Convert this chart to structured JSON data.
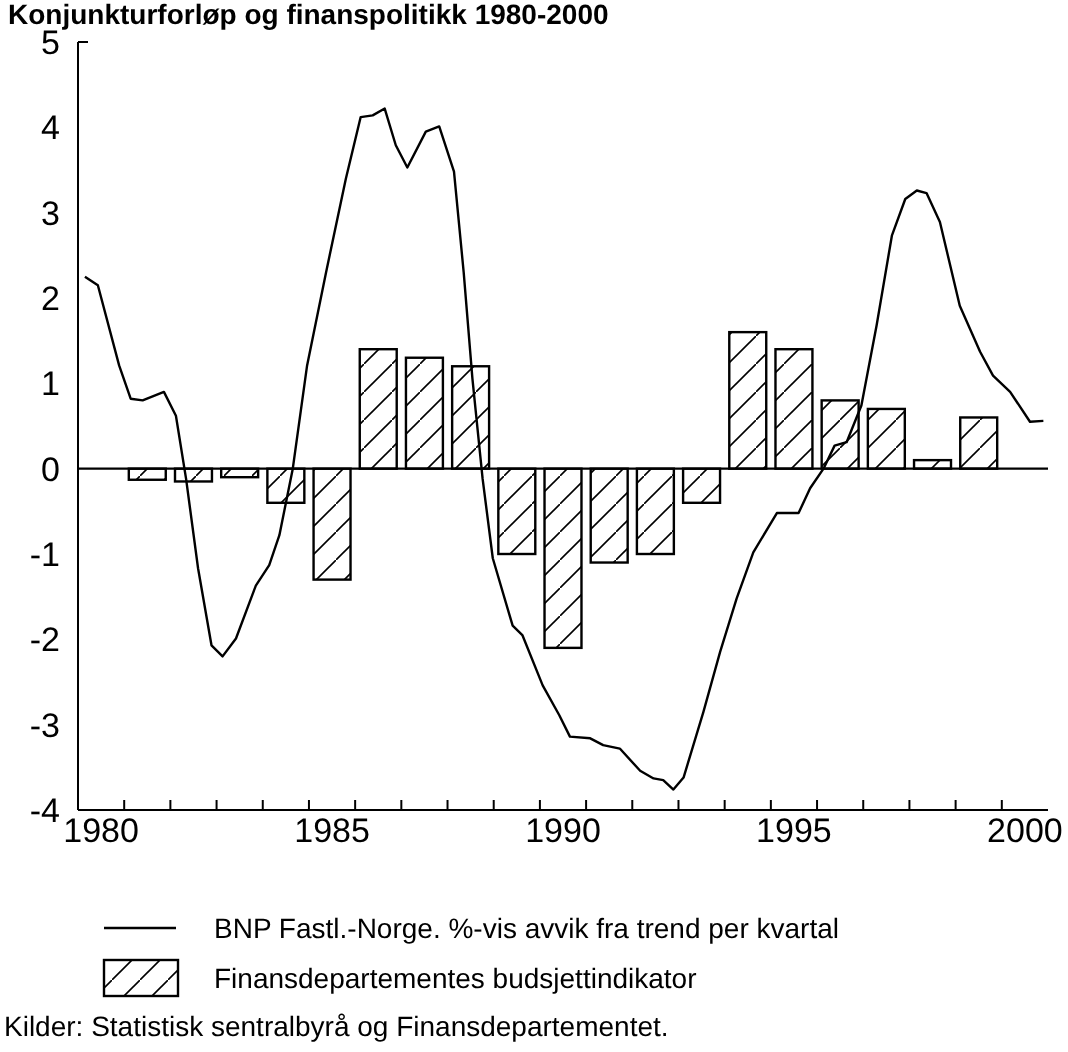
{
  "chart_data": {
    "type": "bar",
    "title": "Konjunkturforløp og finanspolitikk 1980-2000",
    "annotations": [
      "Kilder: Statistisk sentralbyrå og Finansdepartementet."
    ],
    "xlim": [
      1979.5,
      2000.5
    ],
    "xticks": [
      {
        "value": 1980,
        "label": "1980"
      },
      {
        "value": 1985,
        "label": "1985"
      },
      {
        "value": 1990,
        "label": "1990"
      },
      {
        "value": 1995,
        "label": "1995"
      },
      {
        "value": 2000,
        "label": "2000"
      },
      {
        "value": 1980.5,
        "label": null
      },
      {
        "value": 1981.5,
        "label": null
      },
      {
        "value": 1982.5,
        "label": null
      },
      {
        "value": 1983.5,
        "label": null
      },
      {
        "value": 1984.5,
        "label": null
      },
      {
        "value": 1985.5,
        "label": null
      },
      {
        "value": 1986.5,
        "label": null
      },
      {
        "value": 1987.5,
        "label": null
      },
      {
        "value": 1988.5,
        "label": null
      },
      {
        "value": 1989.5,
        "label": null
      },
      {
        "value": 1990.5,
        "label": null
      },
      {
        "value": 1991.5,
        "label": null
      },
      {
        "value": 1992.5,
        "label": null
      },
      {
        "value": 1993.5,
        "label": null
      },
      {
        "value": 1994.5,
        "label": null
      },
      {
        "value": 1995.5,
        "label": null
      },
      {
        "value": 1996.5,
        "label": null
      },
      {
        "value": 1997.5,
        "label": null
      },
      {
        "value": 1998.5,
        "label": null
      },
      {
        "value": 1999.5,
        "label": null
      }
    ],
    "ylim": [
      -4,
      5
    ],
    "yticks": [
      -4,
      -3,
      -2,
      -1,
      0,
      1,
      2,
      3,
      4,
      5
    ],
    "ref_lines": [
      {
        "axis": "y",
        "value": 0
      }
    ],
    "legend": "bottom",
    "series": [
      {
        "type": "line",
        "name": "BNP Fastl.-Norge. %-vis avvik fra trend per kvartal",
        "color": "#000000",
        "x": [
          1979.65,
          1979.93,
          1980.39,
          1980.64,
          1980.9,
          1981.36,
          1981.62,
          1981.84,
          1982.1,
          1982.39,
          1982.63,
          1982.92,
          1983.35,
          1983.64,
          1983.86,
          1984.15,
          1984.46,
          1984.87,
          1985.3,
          1985.62,
          1985.88,
          1986.14,
          1986.38,
          1986.63,
          1987.03,
          1987.32,
          1987.64,
          1987.85,
          1988.04,
          1988.26,
          1988.48,
          1988.91,
          1989.12,
          1989.56,
          1989.92,
          1990.15,
          1990.59,
          1990.87,
          1991.23,
          1991.67,
          1991.96,
          1992.17,
          1992.39,
          1992.61,
          1993.04,
          1993.4,
          1993.76,
          1994.12,
          1994.63,
          1995.1,
          1995.35,
          1995.64,
          1995.88,
          1996.14,
          1996.46,
          1996.79,
          1997.12,
          1997.41,
          1997.66,
          1997.87,
          1998.16,
          1998.59,
          1999.03,
          1999.31,
          1999.68,
          2000.11,
          2000.4
        ],
        "values": [
          2.25,
          2.15,
          1.21,
          0.82,
          0.8,
          0.9,
          0.62,
          -0.12,
          -1.17,
          -2.07,
          -2.2,
          -1.99,
          -1.37,
          -1.13,
          -0.78,
          0,
          1.21,
          2.3,
          3.4,
          4.12,
          4.14,
          4.22,
          3.79,
          3.53,
          3.95,
          4.01,
          3.48,
          2.3,
          1.05,
          -0.12,
          -1.05,
          -1.84,
          -1.95,
          -2.54,
          -2.89,
          -3.14,
          -3.16,
          -3.24,
          -3.28,
          -3.54,
          -3.63,
          -3.65,
          -3.76,
          -3.62,
          -2.85,
          -2.15,
          -1.52,
          -0.98,
          -0.52,
          -0.52,
          -0.23,
          0,
          0.27,
          0.31,
          0.74,
          1.68,
          2.73,
          3.16,
          3.26,
          3.23,
          2.89,
          1.91,
          1.37,
          1.09,
          0.9,
          0.55,
          0.56
        ]
      },
      {
        "name": "Finansdepartementes budsjettindikator",
        "color": "#000000",
        "x": [
          1981,
          1982,
          1983,
          1984,
          1985,
          1986,
          1987,
          1988,
          1989,
          1990,
          1991,
          1992,
          1993,
          1994,
          1995,
          1996,
          1997,
          1998,
          1999
        ],
        "values": [
          -0.13,
          -0.15,
          -0.1,
          -0.4,
          -1.3,
          1.4,
          1.3,
          1.2,
          -1.0,
          -2.1,
          -1.1,
          -1.0,
          -0.4,
          1.6,
          1.4,
          0.8,
          0.7,
          0.1,
          0.6
        ]
      }
    ]
  }
}
